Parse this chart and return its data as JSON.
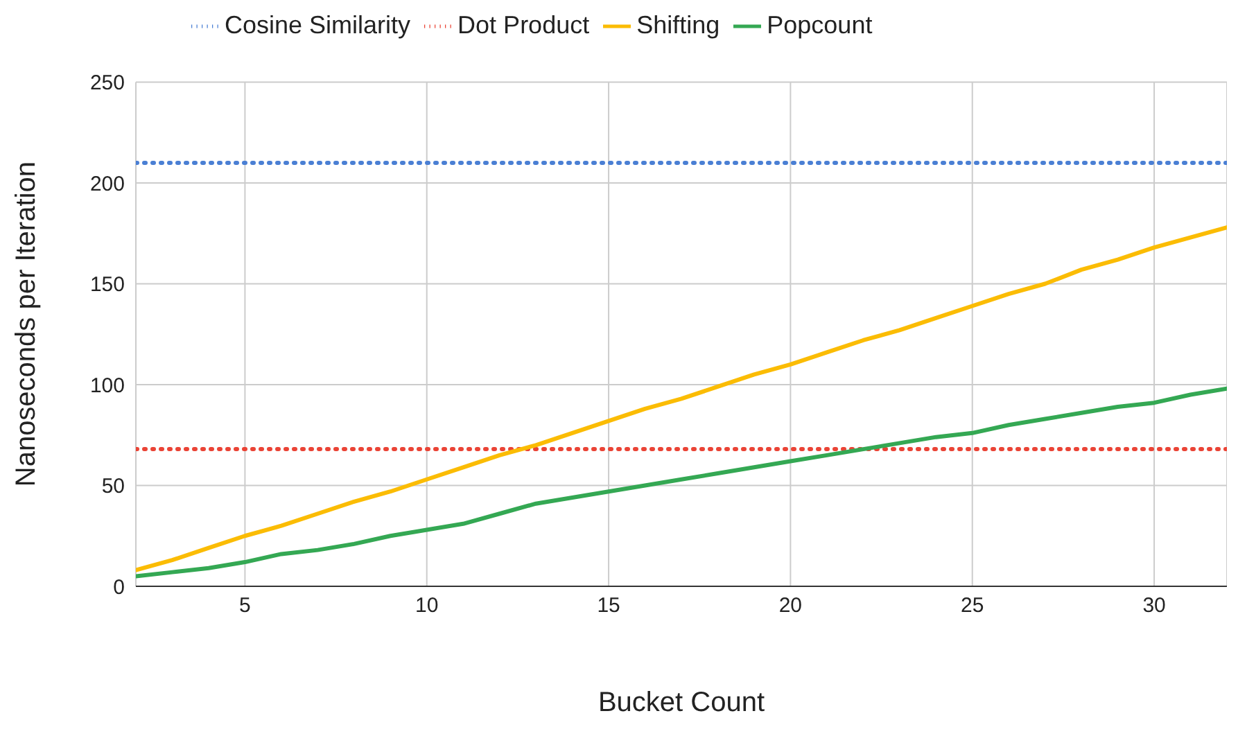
{
  "chart_data": {
    "type": "line",
    "xlabel": "Bucket Count",
    "ylabel": "Nanoseconds per Iteration",
    "xlim": [
      2,
      32
    ],
    "xticks": [
      5,
      10,
      15,
      20,
      25,
      30
    ],
    "ylim": [
      0,
      250
    ],
    "yticks": [
      0,
      50,
      100,
      150,
      200,
      250
    ],
    "grid": true,
    "legend": "top left",
    "marker": "none",
    "series": [
      {
        "name": "Cosine Similarity",
        "color": "#4a7fd4",
        "line_style": "dotted",
        "x": [
          2,
          32
        ],
        "values": [
          210,
          210
        ]
      },
      {
        "name": "Dot Product",
        "color": "#ea4335",
        "line_style": "dotted",
        "x": [
          2,
          32
        ],
        "values": [
          68,
          68
        ]
      },
      {
        "name": "Shifting",
        "color": "#fbbc04",
        "line_style": "solid",
        "x": [
          2,
          3,
          4,
          5,
          6,
          7,
          8,
          9,
          10,
          11,
          12,
          13,
          14,
          15,
          16,
          17,
          18,
          19,
          20,
          21,
          22,
          23,
          24,
          25,
          26,
          27,
          28,
          29,
          30,
          31,
          32
        ],
        "values": [
          8,
          13,
          19,
          25,
          30,
          36,
          42,
          47,
          53,
          59,
          65,
          70,
          76,
          82,
          88,
          93,
          99,
          105,
          110,
          116,
          122,
          127,
          133,
          139,
          145,
          150,
          157,
          162,
          168,
          173,
          178
        ]
      },
      {
        "name": "Popcount",
        "color": "#34a853",
        "line_style": "solid",
        "x": [
          2,
          3,
          4,
          5,
          6,
          7,
          8,
          9,
          10,
          11,
          12,
          13,
          14,
          15,
          16,
          17,
          18,
          19,
          20,
          21,
          22,
          23,
          24,
          25,
          26,
          27,
          28,
          29,
          30,
          31,
          32
        ],
        "values": [
          5,
          7,
          9,
          12,
          16,
          18,
          21,
          25,
          28,
          31,
          36,
          41,
          44,
          47,
          50,
          53,
          56,
          59,
          62,
          65,
          68,
          71,
          74,
          76,
          80,
          83,
          86,
          89,
          91,
          95,
          98
        ]
      }
    ]
  }
}
